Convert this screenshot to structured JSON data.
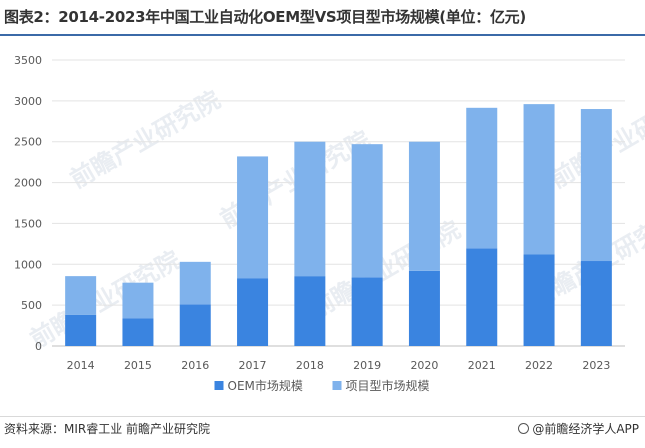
{
  "title": "图表2：2014-2023年中国工业自动化OEM型VS项目型市场规模(单位：亿元)",
  "source": "资料来源：MIR睿工业 前瞻产业研究院",
  "brand": "@前瞻经济学人APP",
  "watermark": "前瞻产业研究院",
  "colors": {
    "oem": "#3a84e0",
    "project": "#7fb2ec",
    "accent": "#3b6aa8"
  },
  "chart_data": {
    "type": "bar",
    "stacked": true,
    "categories": [
      "2014",
      "2015",
      "2016",
      "2017",
      "2018",
      "2019",
      "2020",
      "2021",
      "2022",
      "2023"
    ],
    "series": [
      {
        "name": "OEM市场规模",
        "values": [
          380,
          340,
          510,
          830,
          855,
          840,
          920,
          1195,
          1120,
          1040
        ]
      },
      {
        "name": "项目型市场规模",
        "values": [
          475,
          435,
          520,
          1490,
          1645,
          1630,
          1580,
          1720,
          1840,
          1860
        ]
      }
    ],
    "yticks": [
      0,
      500,
      1000,
      1500,
      2000,
      2500,
      3000,
      3500
    ],
    "ylim": [
      0,
      3500
    ],
    "grid": true,
    "legend": "bottom"
  }
}
